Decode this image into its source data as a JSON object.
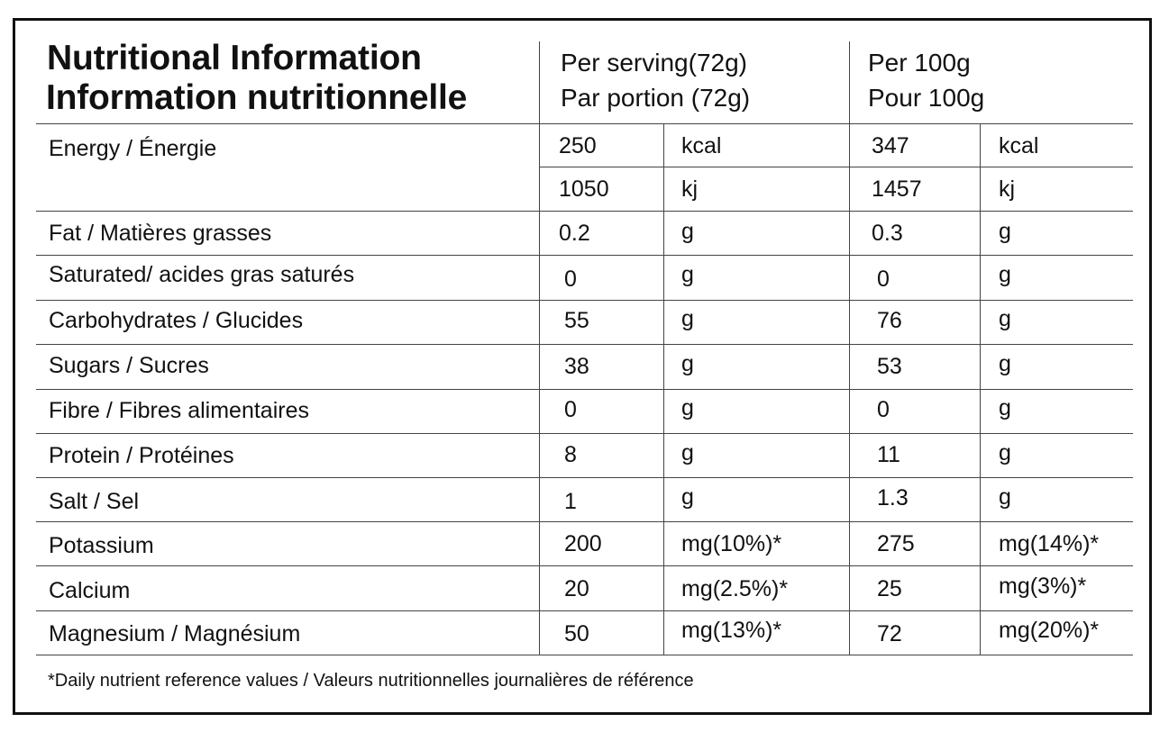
{
  "title": {
    "line1": "Nutritional Information",
    "line2": "Information nutritionnelle"
  },
  "columns": {
    "per_serving_en": "Per serving(72g)",
    "per_serving_fr": "Par portion (72g)",
    "per_100g_en": "Per 100g",
    "per_100g_fr": "Pour 100g"
  },
  "energy": {
    "label": "Energy / Énergie",
    "kcal": {
      "serving": "250",
      "unit": "kcal",
      "per100": "347",
      "unit2": "kcal"
    },
    "kj": {
      "serving": "1050",
      "unit": "kj",
      "per100": "1457",
      "unit2": "kj"
    }
  },
  "rows": [
    {
      "label": "Fat / Matières grasses",
      "serving": "0.2",
      "unit": "g",
      "per100": "0.3",
      "unit2": "g"
    },
    {
      "label": "Saturated/ acides gras saturés",
      "serving": "0",
      "unit": "g",
      "per100": "0",
      "unit2": "g"
    },
    {
      "label": "Carbohydrates / Glucides",
      "serving": "55",
      "unit": "g",
      "per100": "76",
      "unit2": "g"
    },
    {
      "label": "Sugars / Sucres",
      "serving": "38",
      "unit": "g",
      "per100": "53",
      "unit2": "g"
    },
    {
      "label": "Fibre / Fibres alimentaires",
      "serving": "0",
      "unit": "g",
      "per100": "0",
      "unit2": "g"
    },
    {
      "label": "Protein / Protéines",
      "serving": "8",
      "unit": "g",
      "per100": "11",
      "unit2": "g"
    },
    {
      "label": "Salt / Sel",
      "serving": "1",
      "unit": "g",
      "per100": "1.3",
      "unit2": "g"
    },
    {
      "label": "Potassium",
      "serving": "200",
      "unit": "mg(10%)*",
      "per100": "275",
      "unit2": "mg(14%)*"
    },
    {
      "label": "Calcium",
      "serving": "20",
      "unit": "mg(2.5%)*",
      "per100": "25",
      "unit2": "mg(3%)*"
    },
    {
      "label": "Magnesium / Magnésium",
      "serving": "50",
      "unit": "mg(13%)*",
      "per100": "72",
      "unit2": "mg(20%)*"
    }
  ],
  "footnote": "*Daily nutrient reference values / Valeurs nutritionnelles journalières de référence"
}
